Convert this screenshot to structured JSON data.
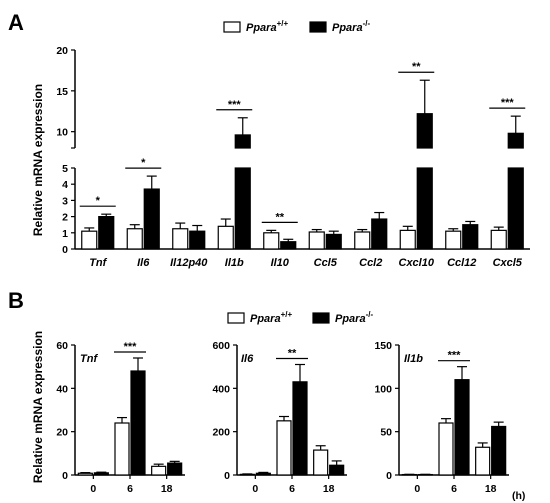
{
  "panel_labels": {
    "a": "A",
    "b": "B"
  },
  "legend": {
    "wt_text": "Ppara",
    "wt_sup": "+/+",
    "ko_text": "Ppara",
    "ko_sup": "-/-"
  },
  "colors": {
    "wt_fill": "#ffffff",
    "ko_fill": "#000000",
    "stroke": "#000000"
  },
  "chart_data": [
    {
      "id": "A",
      "type": "bar",
      "ylabel": "Relative mRNA expression",
      "categories": [
        "Tnf",
        "Il6",
        "Il12p40",
        "Il1b",
        "Il10",
        "Ccl5",
        "Ccl2",
        "Cxcl10",
        "Ccl12",
        "Cxcl5"
      ],
      "y_axis_break": {
        "lower_range": [
          0,
          5
        ],
        "upper_range": [
          8,
          20
        ]
      },
      "lower_ticks": [
        "0",
        "1",
        "2",
        "3",
        "4",
        "5"
      ],
      "upper_ticks": [
        "10",
        "15",
        "20"
      ],
      "series": [
        {
          "name": "Ppara+/+",
          "values": [
            1.1,
            1.25,
            1.25,
            1.4,
            1.0,
            1.05,
            1.05,
            1.15,
            1.1,
            1.15
          ],
          "errors": [
            0.2,
            0.25,
            0.35,
            0.45,
            0.15,
            0.15,
            0.15,
            0.25,
            0.15,
            0.2
          ]
        },
        {
          "name": "Ppara-/-",
          "values": [
            2.0,
            3.7,
            1.1,
            9.6,
            0.45,
            0.9,
            1.85,
            12.2,
            1.5,
            9.8
          ],
          "errors": [
            0.15,
            0.8,
            0.35,
            2.1,
            0.15,
            0.2,
            0.4,
            4.1,
            0.2,
            2.1
          ]
        }
      ],
      "significance": [
        {
          "category": "Tnf",
          "label": "*"
        },
        {
          "category": "Il6",
          "label": "*"
        },
        {
          "category": "Il1b",
          "label": "***"
        },
        {
          "category": "Il10",
          "label": "**"
        },
        {
          "category": "Cxcl10",
          "label": "**"
        },
        {
          "category": "Cxcl5",
          "label": "***"
        }
      ]
    },
    {
      "id": "B1",
      "type": "bar",
      "title": "Tnf",
      "ylabel": "Relative mRNA expression",
      "categories": [
        "0",
        "6",
        "18"
      ],
      "ylim": [
        0,
        60
      ],
      "yticks": [
        "0",
        "20",
        "40",
        "60"
      ],
      "series": [
        {
          "name": "Ppara+/+",
          "values": [
            0.8,
            24,
            4
          ],
          "errors": [
            0.3,
            2.5,
            1.0
          ]
        },
        {
          "name": "Ppara-/-",
          "values": [
            1.0,
            48,
            5.5
          ],
          "errors": [
            0.3,
            6,
            0.8
          ]
        }
      ],
      "significance": [
        {
          "category": "6",
          "label": "***"
        }
      ]
    },
    {
      "id": "B2",
      "type": "bar",
      "title": "Il6",
      "categories": [
        "0",
        "6",
        "18"
      ],
      "ylim": [
        0,
        600
      ],
      "yticks": [
        "0",
        "200",
        "400",
        "600"
      ],
      "series": [
        {
          "name": "Ppara+/+",
          "values": [
            3,
            250,
            115
          ],
          "errors": [
            2,
            20,
            20
          ]
        },
        {
          "name": "Ppara-/-",
          "values": [
            8,
            430,
            45
          ],
          "errors": [
            4,
            80,
            20
          ]
        }
      ],
      "significance": [
        {
          "category": "6",
          "label": "**"
        }
      ]
    },
    {
      "id": "B3",
      "type": "bar",
      "title": "Il1b",
      "categories": [
        "0",
        "6",
        "18"
      ],
      "xunit": "(h)",
      "ylim": [
        0,
        150
      ],
      "yticks": [
        "0",
        "50",
        "100",
        "150"
      ],
      "series": [
        {
          "name": "Ppara+/+",
          "values": [
            0.5,
            60,
            32
          ],
          "errors": [
            0.3,
            5,
            5
          ]
        },
        {
          "name": "Ppara-/-",
          "values": [
            0.5,
            110,
            56
          ],
          "errors": [
            0.3,
            15,
            5
          ]
        }
      ],
      "significance": [
        {
          "category": "6",
          "label": "***"
        }
      ]
    }
  ]
}
